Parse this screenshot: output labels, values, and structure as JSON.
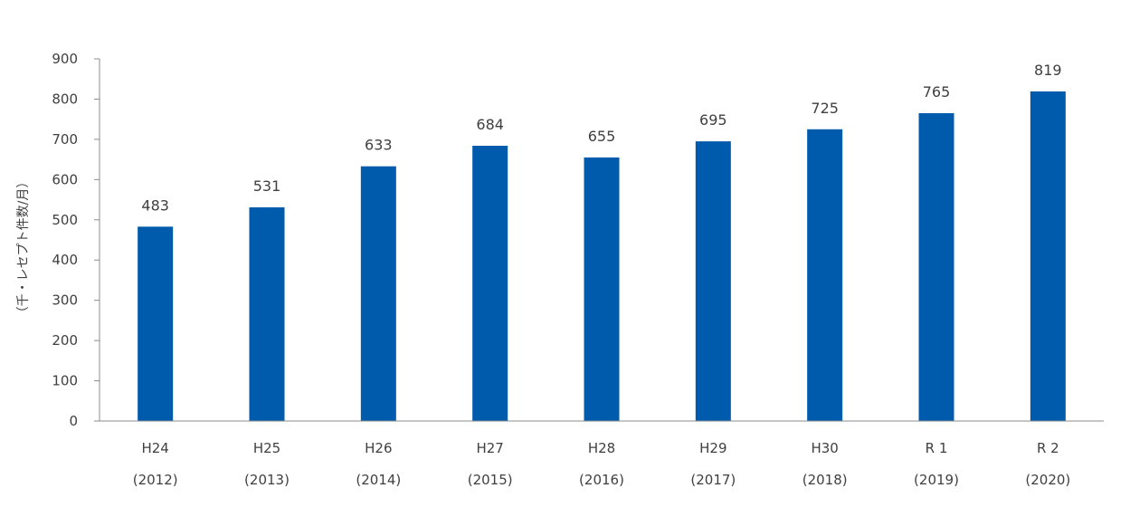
{
  "chart_data": {
    "type": "bar",
    "categories": [
      "H24",
      "H25",
      "H26",
      "H27",
      "H28",
      "H29",
      "H30",
      "R 1",
      "R 2"
    ],
    "category_years": [
      "(2012)",
      "(2013)",
      "(2014)",
      "(2015)",
      "(2016)",
      "(2017)",
      "(2018)",
      "(2019)",
      "(2020)"
    ],
    "values": [
      483,
      531,
      633,
      684,
      655,
      695,
      725,
      765,
      819
    ],
    "data_labels": [
      "483",
      "531",
      "633",
      "684",
      "655",
      "695",
      "725",
      "765",
      "819"
    ],
    "ylabel": "（千・レセプト件数/月）",
    "ylim": [
      0,
      900
    ],
    "yticks": [
      0,
      100,
      200,
      300,
      400,
      500,
      600,
      700,
      800,
      900
    ],
    "ytick_labels": [
      "0",
      "100",
      "200",
      "300",
      "400",
      "500",
      "600",
      "700",
      "800",
      "900"
    ],
    "bar_color": "#005BAC",
    "grid": false,
    "legend": "none"
  }
}
